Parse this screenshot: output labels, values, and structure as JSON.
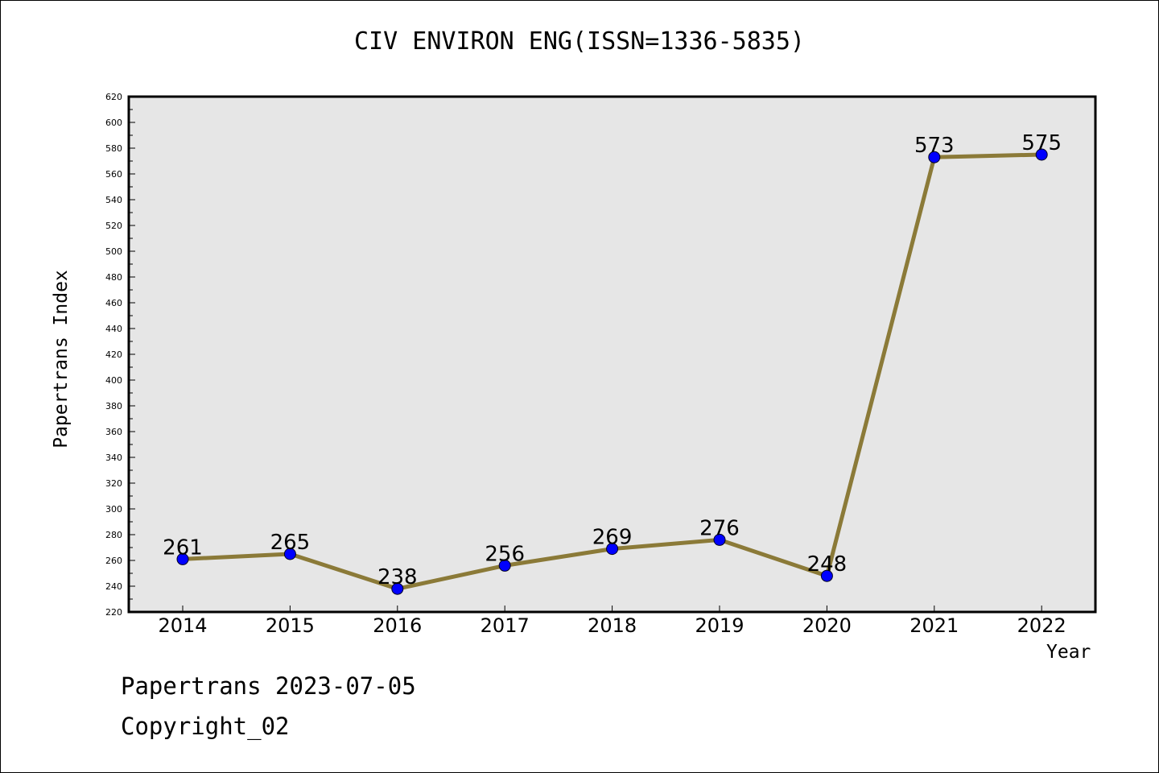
{
  "chart_data": {
    "type": "line",
    "title": "CIV ENVIRON ENG(ISSN=1336-5835)",
    "xlabel": "Year",
    "ylabel": "Papertrans Index",
    "categories": [
      "2014",
      "2015",
      "2016",
      "2017",
      "2018",
      "2019",
      "2020",
      "2021",
      "2022"
    ],
    "series": [
      {
        "values": [
          261,
          265,
          238,
          256,
          269,
          276,
          248,
          573,
          575
        ]
      }
    ],
    "ylim": [
      220,
      620
    ],
    "ytick_step": 20,
    "grid": false,
    "colors": {
      "line": "#8b7a38",
      "marker": "#0000ff",
      "plot_bg": "#e6e6e6"
    }
  },
  "footer": {
    "line1": "Papertrans 2023-07-05",
    "line2": "Copyright_02"
  }
}
